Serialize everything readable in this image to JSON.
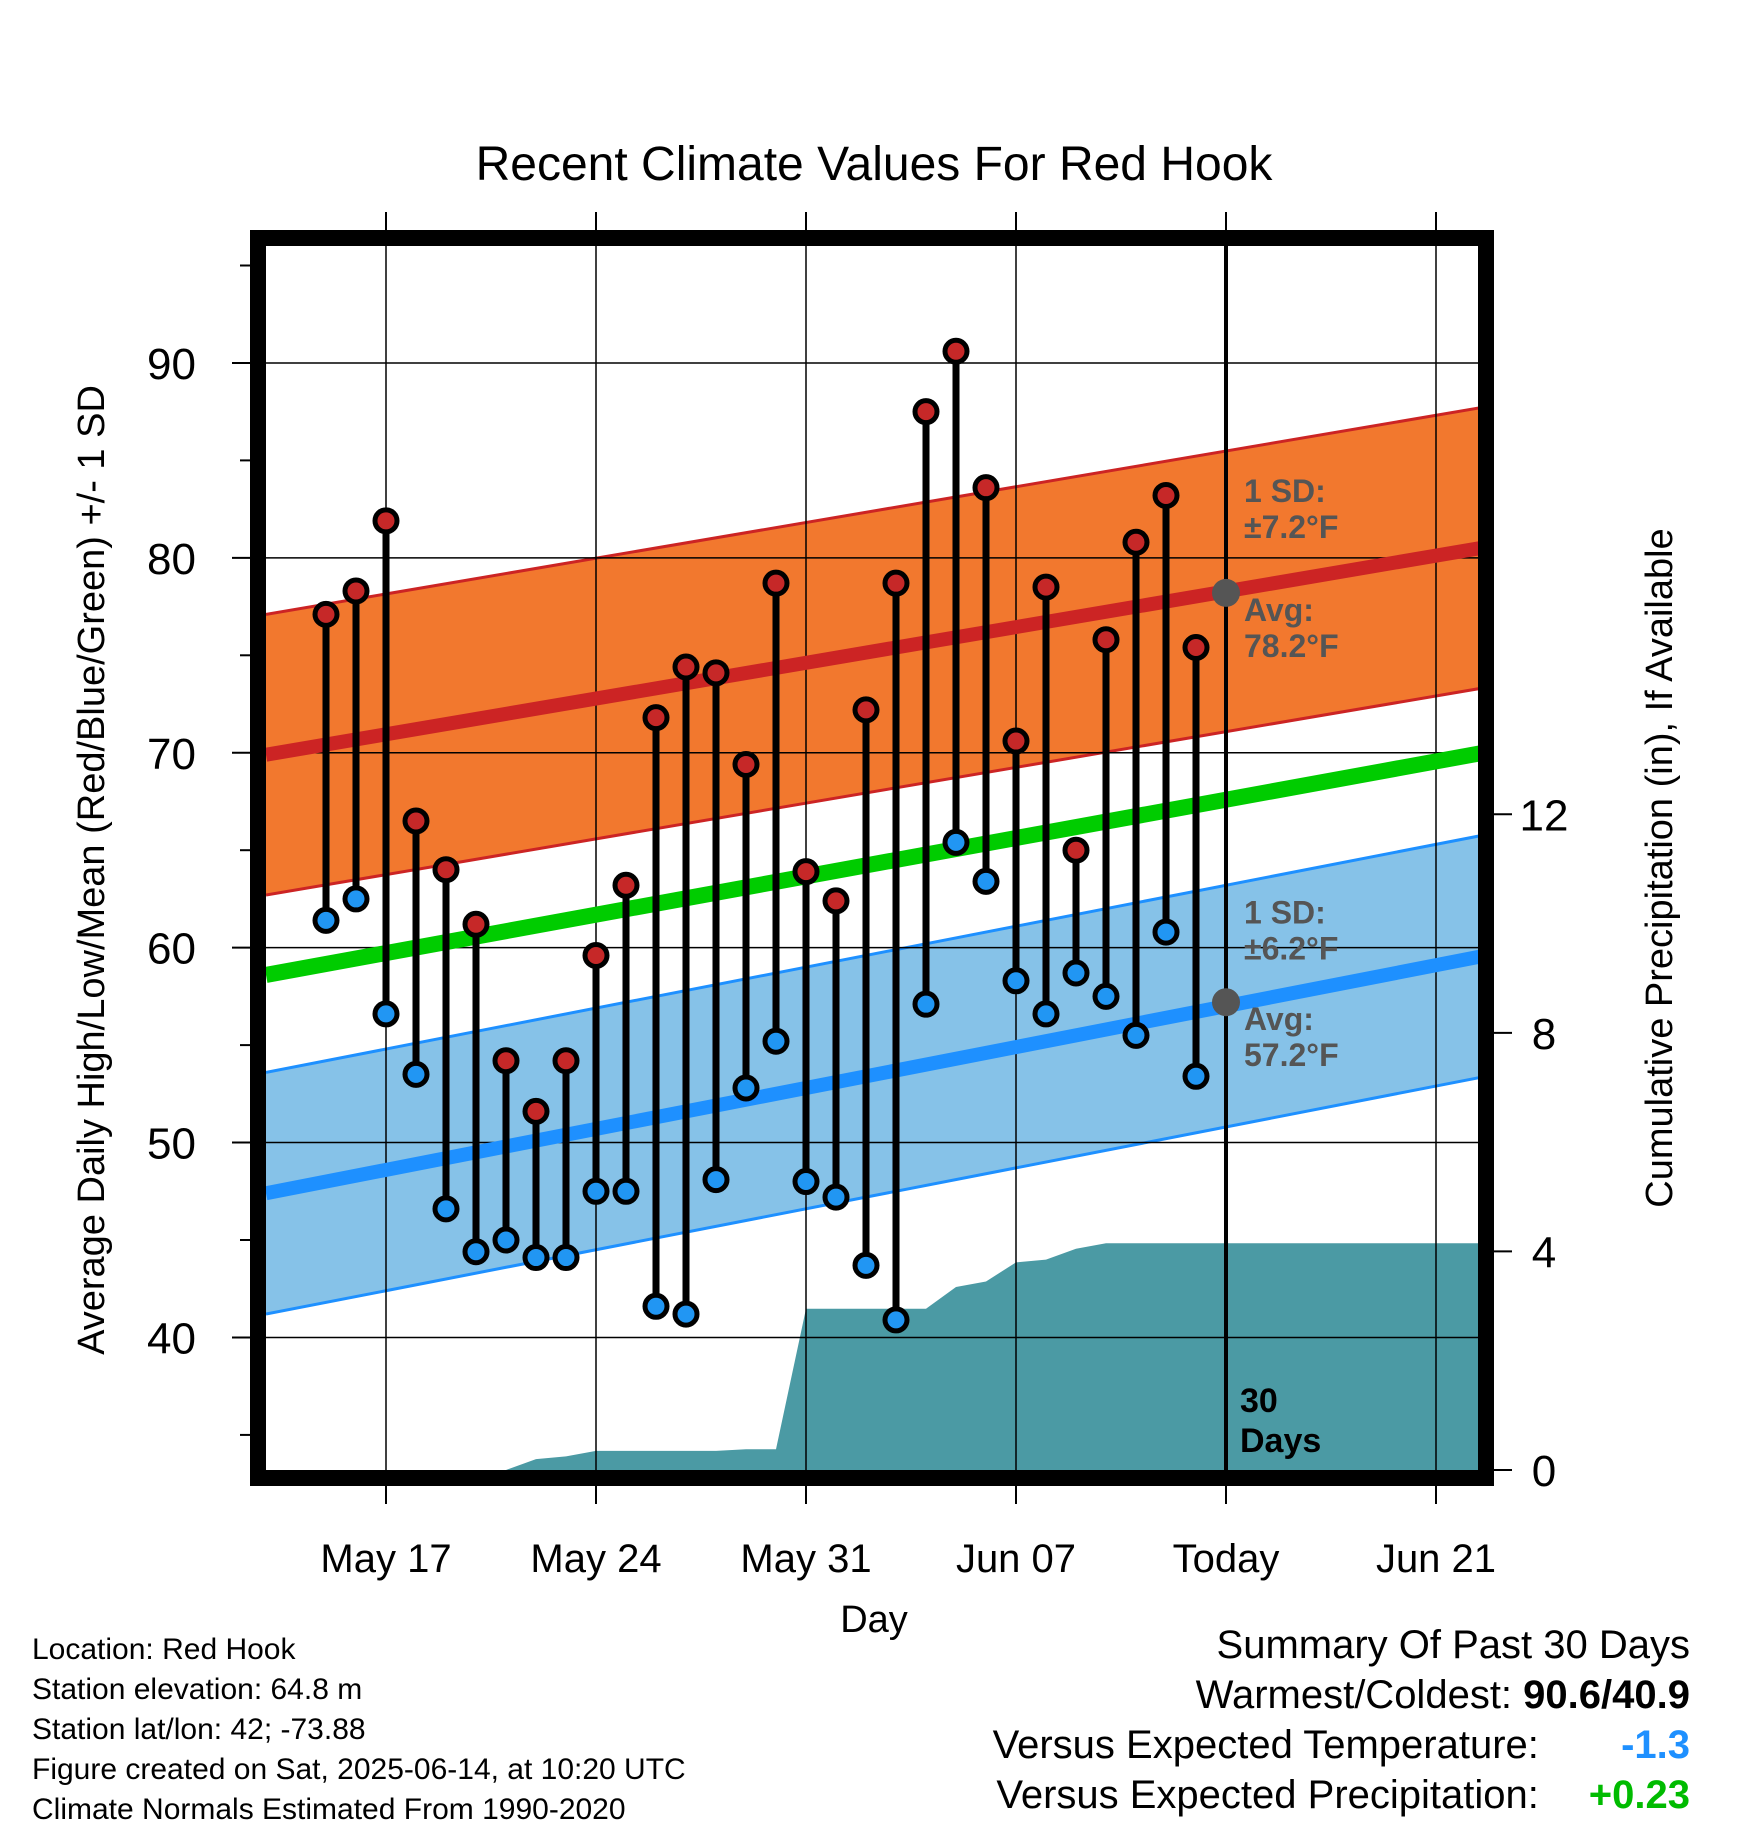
{
  "chart_data": {
    "type": "line",
    "title": "Recent Climate Values For Red Hook",
    "xlabel": "Day",
    "ylabel": "Average Daily High/Low/Mean (Red/Blue/Green) +/- 1 SD",
    "y2label": "Cumulative Precipitation (in), If Available",
    "ylim": [
      33.2,
      96
    ],
    "y2lim": [
      0,
      22.4
    ],
    "xlim": [
      "2025-05-13",
      "2025-06-24"
    ],
    "grid": true,
    "x_ticks": [
      {
        "date": "2025-05-17",
        "label": "May 17"
      },
      {
        "date": "2025-05-24",
        "label": "May 24"
      },
      {
        "date": "2025-05-31",
        "label": "May 31"
      },
      {
        "date": "2025-06-07",
        "label": "Jun 07"
      },
      {
        "date": "2025-06-14",
        "label": "Today"
      },
      {
        "date": "2025-06-21",
        "label": "Jun 21"
      }
    ],
    "y_ticks": [
      40,
      50,
      60,
      70,
      80,
      90
    ],
    "y2_ticks": [
      0,
      4,
      8,
      12
    ],
    "today": "2025-06-14",
    "today_label": [
      "30",
      "Days"
    ],
    "normals": {
      "dates": [
        "2025-05-13",
        "2025-06-24"
      ],
      "high_mean": [
        69.9,
        80.9
      ],
      "high_sd": 7.2,
      "low_mean": [
        47.4,
        60.0
      ],
      "low_sd": 6.2,
      "daily_mean": [
        58.6,
        70.4
      ]
    },
    "annotations": {
      "high_sd": [
        "1 SD:",
        "±7.2°F"
      ],
      "high_avg": [
        "Avg:",
        "78.2°F"
      ],
      "low_sd": [
        "1 SD:",
        "±6.2°F"
      ],
      "low_avg": [
        "Avg:",
        "57.2°F"
      ],
      "high_avg_value": 78.2,
      "low_avg_value": 57.2
    },
    "observations": [
      {
        "date": "2025-05-15",
        "high": 77.1,
        "low": 61.4
      },
      {
        "date": "2025-05-16",
        "high": 78.3,
        "low": 62.5
      },
      {
        "date": "2025-05-17",
        "high": 81.9,
        "low": 56.6
      },
      {
        "date": "2025-05-18",
        "high": 66.5,
        "low": 53.5
      },
      {
        "date": "2025-05-19",
        "high": 64.0,
        "low": 46.6
      },
      {
        "date": "2025-05-20",
        "high": 61.2,
        "low": 44.4
      },
      {
        "date": "2025-05-21",
        "high": 54.2,
        "low": 45.0
      },
      {
        "date": "2025-05-22",
        "high": 51.6,
        "low": 44.1
      },
      {
        "date": "2025-05-23",
        "high": 54.2,
        "low": 44.1
      },
      {
        "date": "2025-05-24",
        "high": 59.6,
        "low": 47.5
      },
      {
        "date": "2025-05-25",
        "high": 63.2,
        "low": 47.5
      },
      {
        "date": "2025-05-26",
        "high": 71.8,
        "low": 41.6
      },
      {
        "date": "2025-05-27",
        "high": 74.4,
        "low": 41.2
      },
      {
        "date": "2025-05-28",
        "high": 74.1,
        "low": 48.1
      },
      {
        "date": "2025-05-29",
        "high": 69.4,
        "low": 52.8
      },
      {
        "date": "2025-05-30",
        "high": 78.7,
        "low": 55.2
      },
      {
        "date": "2025-05-31",
        "high": 63.9,
        "low": 48.0
      },
      {
        "date": "2025-06-01",
        "high": 62.4,
        "low": 47.2
      },
      {
        "date": "2025-06-02",
        "high": 72.2,
        "low": 43.7
      },
      {
        "date": "2025-06-03",
        "high": 78.7,
        "low": 40.9
      },
      {
        "date": "2025-06-04",
        "high": 87.5,
        "low": 57.1
      },
      {
        "date": "2025-06-05",
        "high": 90.6,
        "low": 65.4
      },
      {
        "date": "2025-06-06",
        "high": 83.6,
        "low": 63.4
      },
      {
        "date": "2025-06-07",
        "high": 70.6,
        "low": 58.3
      },
      {
        "date": "2025-06-08",
        "high": 78.5,
        "low": 56.6
      },
      {
        "date": "2025-06-09",
        "high": 65.0,
        "low": 58.7
      },
      {
        "date": "2025-06-10",
        "high": 75.8,
        "low": 57.5
      },
      {
        "date": "2025-06-11",
        "high": 80.8,
        "low": 55.5
      },
      {
        "date": "2025-06-12",
        "high": 83.2,
        "low": 60.8
      },
      {
        "date": "2025-06-13",
        "high": 75.4,
        "low": 53.4
      }
    ],
    "precipitation": {
      "dates": [
        "2025-05-13",
        "2025-05-20",
        "2025-05-21",
        "2025-05-22",
        "2025-05-23",
        "2025-05-24",
        "2025-05-28",
        "2025-05-29",
        "2025-05-30",
        "2025-05-31",
        "2025-06-01",
        "2025-06-03",
        "2025-06-04",
        "2025-06-05",
        "2025-06-06",
        "2025-06-07",
        "2025-06-08",
        "2025-06-09",
        "2025-06-10",
        "2025-06-24"
      ],
      "values": [
        0,
        0,
        0,
        0.2,
        0.25,
        0.35,
        0.35,
        0.38,
        0.38,
        2.95,
        2.95,
        2.95,
        2.95,
        3.35,
        3.45,
        3.8,
        3.85,
        4.05,
        4.15,
        4.15
      ]
    },
    "colors": {
      "high_band": "#f2782e",
      "high_line": "#cc2424",
      "low_band": "#86c2e8",
      "low_line": "#1e90ff",
      "mean_line": "#00cc00",
      "precip_fill": "#4b9aa4",
      "high_dot": "#c62828",
      "low_dot": "#2196f3",
      "avg_marker": "#555555"
    }
  },
  "footer": {
    "location": "Location: Red Hook",
    "elevation": "Station elevation: 64.8 m",
    "latlon": "Station lat/lon: 42; -73.88",
    "created": "Figure created on Sat, 2025-06-14, at 10:20 UTC",
    "normals": "Climate Normals Estimated From 1990-2020"
  },
  "summary": {
    "title": "Summary Of Past 30 Days",
    "warmest_label": "Warmest/Coldest:",
    "warmest_value": "90.6/40.9",
    "temp_label": "Versus Expected Temperature:",
    "temp_value": "-1.3",
    "temp_color": "#1e90ff",
    "precip_label": "Versus Expected Precipitation:",
    "precip_value": "+0.23",
    "precip_color": "#00bb00"
  }
}
